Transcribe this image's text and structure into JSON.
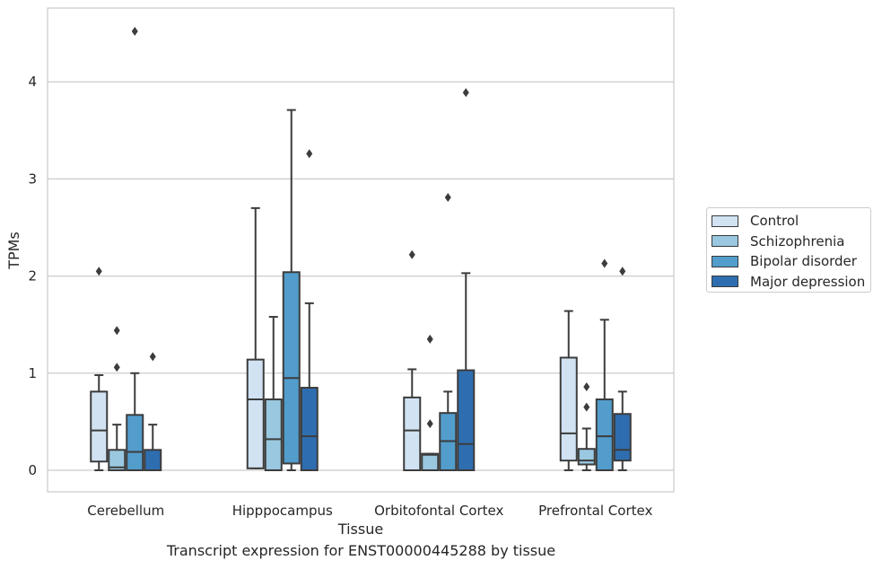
{
  "chart_data": {
    "type": "box",
    "title": "",
    "caption": "Transcript expression for ENST00000445288 by tissue",
    "xlabel": "Tissue",
    "ylabel": "TPMs",
    "ylim": [
      -0.22,
      4.76
    ],
    "yticks": [
      0,
      1,
      2,
      3,
      4
    ],
    "grid": "horizontal",
    "legend_position": "right",
    "categories": [
      "Cerebellum",
      "Hipppocampus",
      "Orbitofontal Cortex",
      "Prefrontal Cortex"
    ],
    "series": [
      {
        "name": "Control",
        "color": "#d1e3f3",
        "boxes": [
          {
            "whisker_low": 0.0,
            "q1": 0.09,
            "median": 0.41,
            "q3": 0.81,
            "whisker_high": 0.98,
            "outliers": [
              2.05
            ]
          },
          {
            "whisker_low": 0.02,
            "q1": 0.02,
            "median": 0.73,
            "q3": 1.14,
            "whisker_high": 2.7,
            "outliers": []
          },
          {
            "whisker_low": 0.0,
            "q1": 0.0,
            "median": 0.41,
            "q3": 0.75,
            "whisker_high": 1.04,
            "outliers": [
              2.22
            ]
          },
          {
            "whisker_low": 0.0,
            "q1": 0.1,
            "median": 0.38,
            "q3": 1.16,
            "whisker_high": 1.64,
            "outliers": []
          }
        ]
      },
      {
        "name": "Schizophrenia",
        "color": "#9ac8e0",
        "boxes": [
          {
            "whisker_low": 0.0,
            "q1": 0.0,
            "median": 0.03,
            "q3": 0.21,
            "whisker_high": 0.47,
            "outliers": [
              1.06,
              1.44
            ]
          },
          {
            "whisker_low": 0.0,
            "q1": 0.0,
            "median": 0.32,
            "q3": 0.73,
            "whisker_high": 1.58,
            "outliers": []
          },
          {
            "whisker_low": 0.0,
            "q1": 0.0,
            "median": 0.16,
            "q3": 0.17,
            "whisker_high": 0.17,
            "outliers": [
              0.48,
              1.35
            ]
          },
          {
            "whisker_low": 0.0,
            "q1": 0.06,
            "median": 0.1,
            "q3": 0.22,
            "whisker_high": 0.43,
            "outliers": [
              0.65,
              0.86
            ]
          }
        ]
      },
      {
        "name": "Bipolar disorder",
        "color": "#529dcc",
        "boxes": [
          {
            "whisker_low": 0.0,
            "q1": 0.0,
            "median": 0.19,
            "q3": 0.57,
            "whisker_high": 1.0,
            "outliers": [
              4.52
            ]
          },
          {
            "whisker_low": 0.0,
            "q1": 0.07,
            "median": 0.95,
            "q3": 2.04,
            "whisker_high": 3.71,
            "outliers": []
          },
          {
            "whisker_low": 0.0,
            "q1": 0.0,
            "median": 0.3,
            "q3": 0.59,
            "whisker_high": 0.81,
            "outliers": [
              2.81
            ]
          },
          {
            "whisker_low": 0.0,
            "q1": 0.0,
            "median": 0.35,
            "q3": 0.73,
            "whisker_high": 1.55,
            "outliers": [
              2.13
            ]
          }
        ]
      },
      {
        "name": "Major depression",
        "color": "#2e6eb0",
        "boxes": [
          {
            "whisker_low": 0.0,
            "q1": 0.0,
            "median": 0.0,
            "q3": 0.21,
            "whisker_high": 0.47,
            "outliers": [
              1.17
            ]
          },
          {
            "whisker_low": 0.0,
            "q1": 0.0,
            "median": 0.35,
            "q3": 0.85,
            "whisker_high": 1.72,
            "outliers": [
              3.26
            ]
          },
          {
            "whisker_low": 0.0,
            "q1": 0.0,
            "median": 0.27,
            "q3": 1.03,
            "whisker_high": 2.03,
            "outliers": [
              3.89
            ]
          },
          {
            "whisker_low": 0.0,
            "q1": 0.1,
            "median": 0.21,
            "q3": 0.58,
            "whisker_high": 0.81,
            "outliers": [
              2.05
            ]
          }
        ]
      }
    ]
  }
}
